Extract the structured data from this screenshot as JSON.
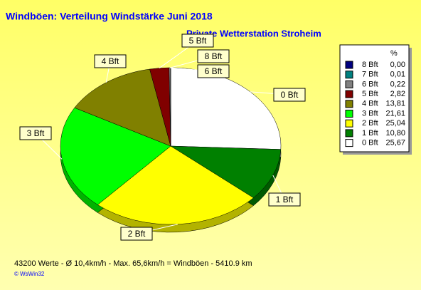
{
  "chart_data": {
    "type": "pie",
    "title": "Windböen: Verteilung Windstärke  Juni 2018",
    "subtitle": "Private Wetterstation Stroheim",
    "legend_header": "%",
    "categories": [
      "8 Bft",
      "7 Bft",
      "6 Bft",
      "5 Bft",
      "4 Bft",
      "3 Bft",
      "2 Bft",
      "1 Bft",
      "0 Bft"
    ],
    "values": [
      0.0,
      0.01,
      0.22,
      2.82,
      13.81,
      21.61,
      25.04,
      10.8,
      25.67
    ],
    "value_labels": [
      "0,00",
      "0,01",
      "0,22",
      "2,82",
      "13,81",
      "21,61",
      "25,04",
      "10,80",
      "25,67"
    ],
    "colors": [
      "#000080",
      "#008080",
      "#808080",
      "#800000",
      "#808000",
      "#00ff00",
      "#ffff00",
      "#008000",
      "#ffffff"
    ],
    "legend": "right",
    "footer": "43200 Werte   -   Ø 10,4km/h  -  Max. 65,6km/h = Windböen   -   5410.9 km",
    "copyright": "© WsWin32"
  }
}
